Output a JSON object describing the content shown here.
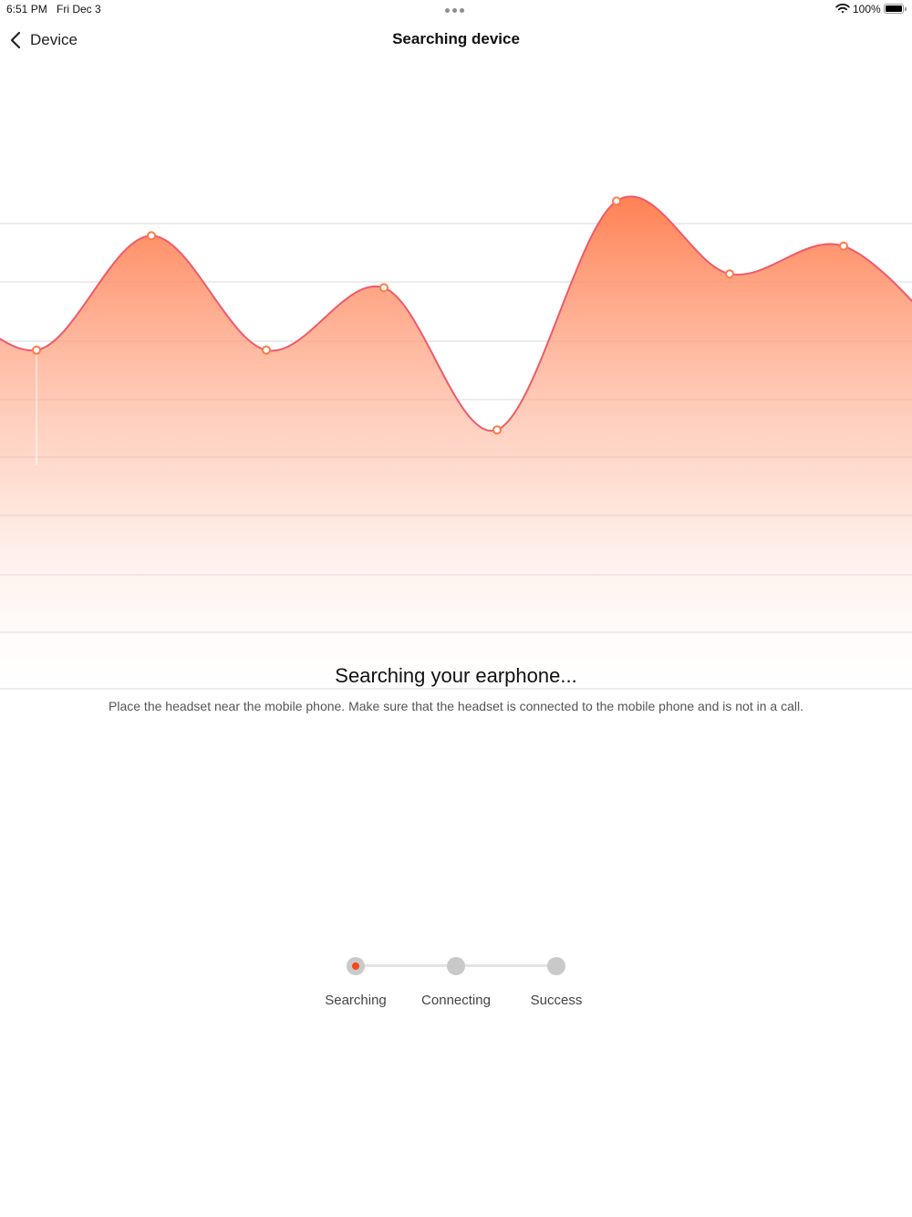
{
  "status_bar": {
    "time": "6:51 PM",
    "date": "Fri Dec 3",
    "battery": "100%",
    "battery_level": 1.0,
    "icons": [
      "multitask-dots-icon",
      "wifi-icon",
      "battery-icon"
    ]
  },
  "nav": {
    "back_label": "Device",
    "back_icon": "chevron-left-icon",
    "title": "Searching device"
  },
  "wave": {
    "line_color": "#ef5a6a",
    "fill_top_color": "#ff7a4a",
    "marker_color": "#ff7a4a",
    "grid_color": "#ececec",
    "points": [
      0.49,
      0.82,
      0.49,
      0.67,
      0.26,
      0.92,
      0.71,
      0.79,
      0.49
    ],
    "marker_indices": [
      1,
      2,
      3,
      4,
      5,
      6,
      7,
      8
    ]
  },
  "message": {
    "headline": "Searching your earphone...",
    "subtext": "Place the headset near the mobile phone. Make sure that the headset is connected to the mobile phone and is not in a call."
  },
  "steps": [
    {
      "label": "Searching",
      "active": true
    },
    {
      "label": "Connecting",
      "active": false
    },
    {
      "label": "Success",
      "active": false
    }
  ],
  "accent_color": "#f04a1c"
}
